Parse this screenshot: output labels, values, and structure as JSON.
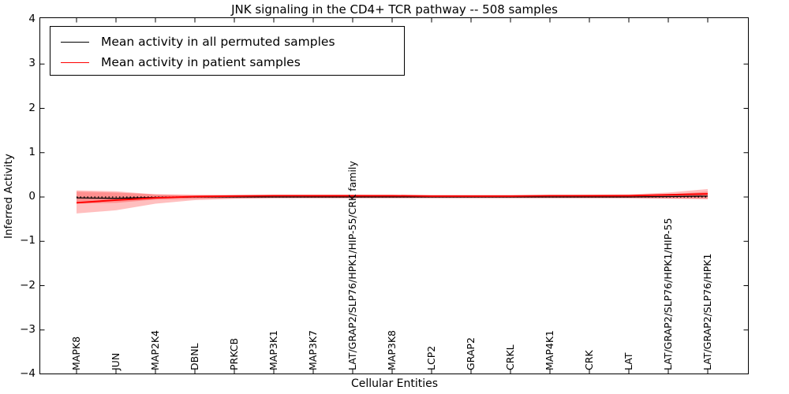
{
  "title": "JNK signaling in the CD4+ TCR pathway -- 508 samples",
  "axes": {
    "xlabel": "Cellular Entities",
    "ylabel": "Inferred Activity"
  },
  "legend": {
    "position": "upper-left",
    "items": [
      {
        "label": "Mean activity in all permuted samples",
        "color": "#000000"
      },
      {
        "label": "Mean activity in patient samples",
        "color": "#ff0000"
      }
    ]
  },
  "chart_data": {
    "type": "line",
    "title": "JNK signaling in the CD4+ TCR pathway -- 508 samples",
    "xlabel": "Cellular Entities",
    "ylabel": "Inferred Activity",
    "ylim": [
      -4,
      4
    ],
    "yticks": [
      4,
      3,
      2,
      1,
      0,
      -1,
      -2,
      -3,
      -4
    ],
    "grid": false,
    "zero_line": {
      "y": 0,
      "style": "dotted",
      "color": "#000000"
    },
    "band_fill_color": "#ff0000",
    "band_opacity": 0.25,
    "categories": [
      "MAPK8",
      "JUN",
      "MAP2K4",
      "DBNL",
      "PRKCB",
      "MAP3K1",
      "MAP3K7",
      "LAT/GRAP2/SLP76/HPK1/HIP-55/CRK family",
      "MAP3K8",
      "LCP2",
      "GRAP2",
      "CRKL",
      "MAP4K1",
      "CRK",
      "LAT",
      "LAT/GRAP2/SLP76/HPK1/HIP-55",
      "LAT/GRAP2/SLP76/HPK1"
    ],
    "series": [
      {
        "name": "Mean activity in all permuted samples",
        "color": "#000000",
        "values": [
          -0.02,
          -0.03,
          -0.01,
          0.0,
          0.0,
          0.0,
          0.0,
          0.0,
          0.0,
          0.0,
          0.0,
          0.0,
          0.0,
          0.0,
          0.0,
          0.01,
          0.02
        ],
        "band_upper": [
          0.15,
          0.13,
          0.06,
          0.04,
          0.04,
          0.04,
          0.04,
          0.04,
          0.04,
          0.04,
          0.04,
          0.04,
          0.04,
          0.04,
          0.04,
          0.06,
          0.12
        ],
        "band_lower": [
          -0.15,
          -0.13,
          -0.06,
          -0.04,
          -0.03,
          -0.02,
          -0.02,
          -0.02,
          -0.02,
          -0.02,
          -0.02,
          -0.02,
          -0.02,
          -0.02,
          -0.02,
          -0.03,
          -0.04
        ]
      },
      {
        "name": "Mean activity in patient samples",
        "color": "#ff0000",
        "values": [
          -0.13,
          -0.07,
          -0.02,
          0.01,
          0.02,
          0.03,
          0.03,
          0.03,
          0.03,
          0.02,
          0.02,
          0.02,
          0.03,
          0.03,
          0.03,
          0.05,
          0.07
        ],
        "band_upper": [
          0.12,
          0.1,
          0.06,
          0.05,
          0.05,
          0.05,
          0.05,
          0.05,
          0.04,
          0.04,
          0.04,
          0.04,
          0.04,
          0.05,
          0.06,
          0.1,
          0.18
        ],
        "band_lower": [
          -0.37,
          -0.3,
          -0.15,
          -0.07,
          -0.04,
          -0.03,
          -0.03,
          -0.03,
          -0.03,
          -0.03,
          -0.03,
          -0.03,
          -0.03,
          -0.03,
          -0.03,
          -0.04,
          -0.05
        ]
      }
    ]
  }
}
